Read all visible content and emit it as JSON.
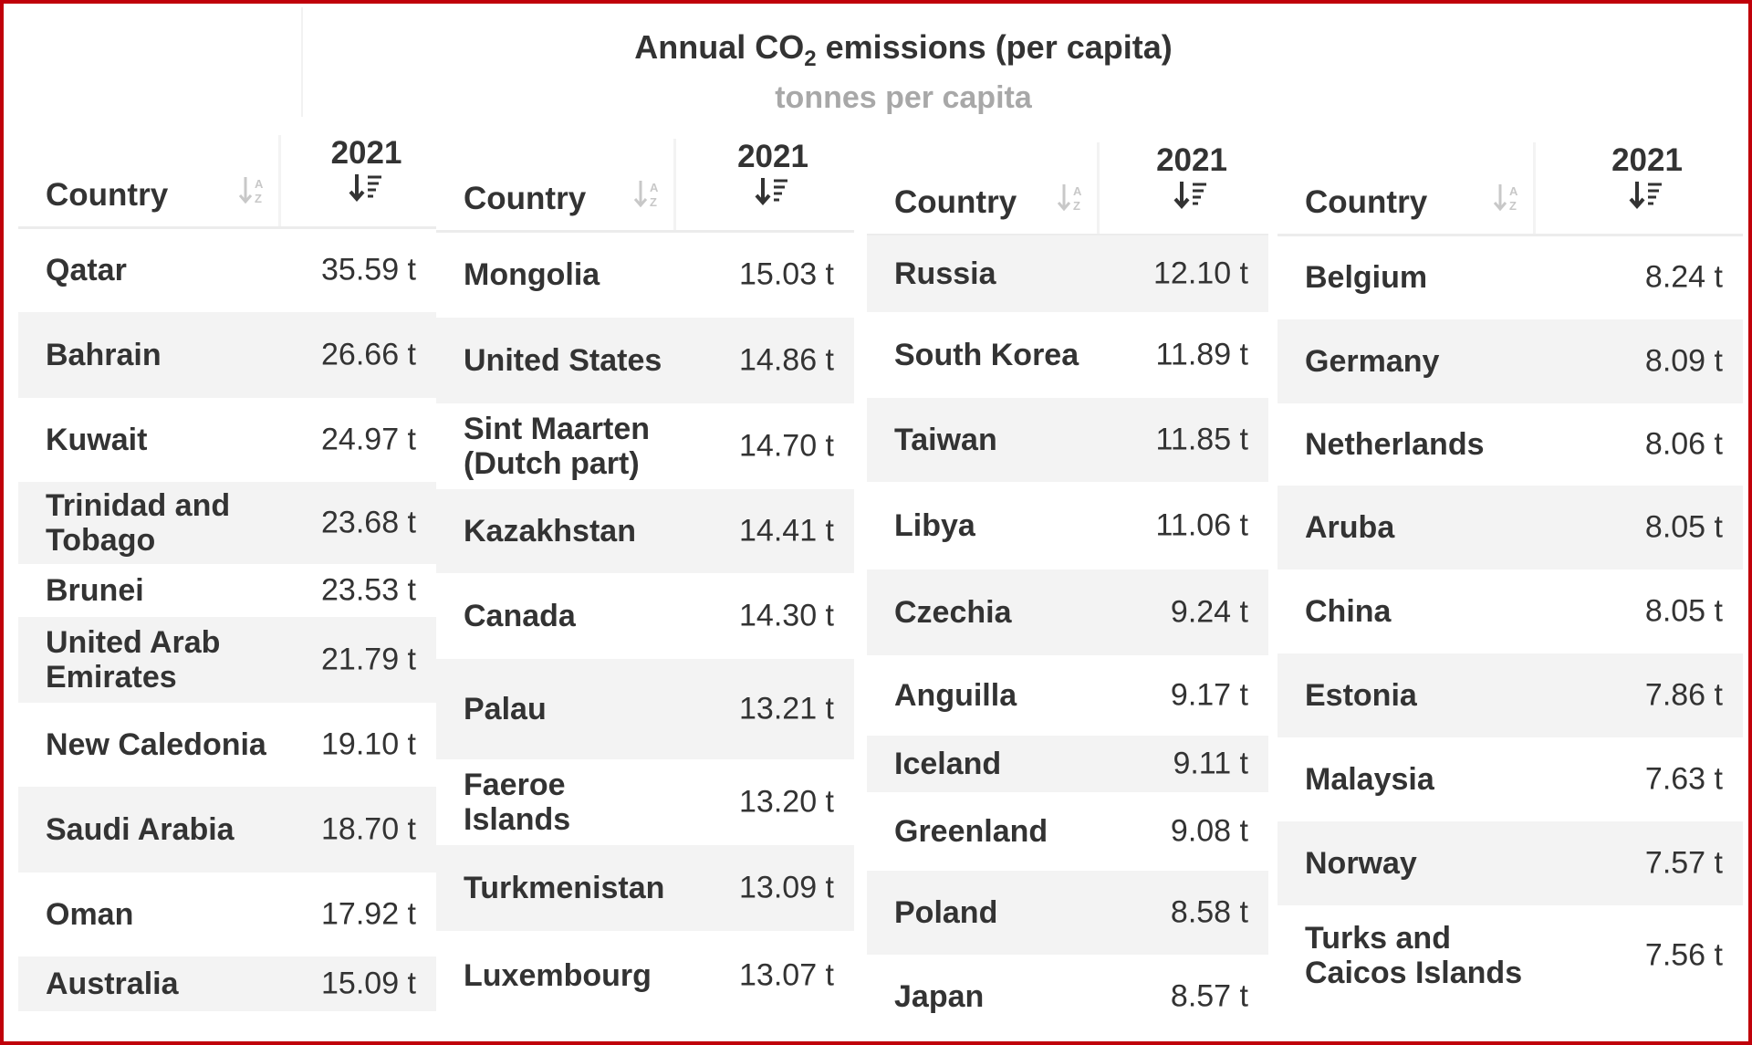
{
  "chart_data": {
    "type": "table",
    "title": "Annual CO",
    "title_sub": "2",
    "title_suffix": " emissions (per capita)",
    "subtitle": "tonnes per capita",
    "unit": "t",
    "columns": [
      "Country",
      "2021"
    ],
    "tables": [
      {
        "header": {
          "country": "Country",
          "year": "2021"
        },
        "rows": [
          {
            "country": "Qatar",
            "value": "35.59 t"
          },
          {
            "country": "Bahrain",
            "value": "26.66 t"
          },
          {
            "country": "Kuwait",
            "value": "24.97 t"
          },
          {
            "country": "Trinidad and Tobago",
            "value": "23.68 t"
          },
          {
            "country": "Brunei",
            "value": "23.53 t"
          },
          {
            "country": "United Arab Emirates",
            "value": "21.79 t"
          },
          {
            "country": "New Caledonia",
            "value": "19.10 t"
          },
          {
            "country": "Saudi Arabia",
            "value": "18.70 t"
          },
          {
            "country": "Oman",
            "value": "17.92 t"
          },
          {
            "country": "Australia",
            "value": "15.09 t"
          }
        ]
      },
      {
        "header": {
          "country": "Country",
          "year": "2021"
        },
        "rows": [
          {
            "country": "Mongolia",
            "value": "15.03 t"
          },
          {
            "country": "United States",
            "value": "14.86 t"
          },
          {
            "country": "Sint Maarten (Dutch part)",
            "value": "14.70 t"
          },
          {
            "country": "Kazakhstan",
            "value": "14.41 t"
          },
          {
            "country": "Canada",
            "value": "14.30 t"
          },
          {
            "country": "Palau",
            "value": "13.21 t"
          },
          {
            "country": "Faeroe Islands",
            "value": "13.20 t"
          },
          {
            "country": "Turkmenistan",
            "value": "13.09 t"
          },
          {
            "country": "Luxembourg",
            "value": "13.07 t"
          }
        ]
      },
      {
        "header": {
          "country": "Country",
          "year": "2021"
        },
        "rows": [
          {
            "country": "Russia",
            "value": "12.10 t"
          },
          {
            "country": "South Korea",
            "value": "11.89 t"
          },
          {
            "country": "Taiwan",
            "value": "11.85 t"
          },
          {
            "country": "Libya",
            "value": "11.06 t"
          },
          {
            "country": "Czechia",
            "value": "9.24 t"
          },
          {
            "country": "Anguilla",
            "value": "9.17 t"
          },
          {
            "country": "Iceland",
            "value": "9.11 t"
          },
          {
            "country": "Greenland",
            "value": "9.08 t"
          },
          {
            "country": "Poland",
            "value": "8.58 t"
          },
          {
            "country": "Japan",
            "value": "8.57 t"
          }
        ]
      },
      {
        "header": {
          "country": "Country",
          "year": "2021"
        },
        "rows": [
          {
            "country": "Belgium",
            "value": "8.24 t"
          },
          {
            "country": "Germany",
            "value": "8.09 t"
          },
          {
            "country": "Netherlands",
            "value": "8.06 t"
          },
          {
            "country": "Aruba",
            "value": "8.05 t"
          },
          {
            "country": "China",
            "value": "8.05 t"
          },
          {
            "country": "Estonia",
            "value": "7.86 t"
          },
          {
            "country": "Malaysia",
            "value": "7.63 t"
          },
          {
            "country": "Norway",
            "value": "7.57 t"
          },
          {
            "country": "Turks and Caicos Islands",
            "value": "7.56 t"
          }
        ]
      }
    ],
    "colors": {
      "frame": "#c0000a",
      "row_shade": "#f3f3f3",
      "text": "#333333",
      "subtitle": "#a8a8a8",
      "sort_icon": "#c8c8c8"
    }
  }
}
